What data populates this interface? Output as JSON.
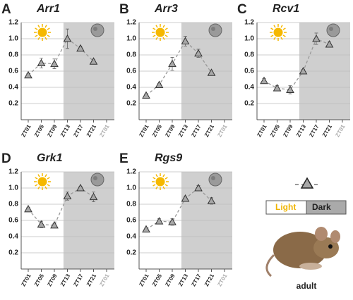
{
  "chart_data": [
    {
      "type": "line",
      "panel": "A",
      "title": "Arr1",
      "categories": [
        "ZT01",
        "ZT05",
        "ZT09",
        "ZT13",
        "ZT17",
        "ZT21",
        "ZT01"
      ],
      "values": [
        0.55,
        0.7,
        0.69,
        1.0,
        0.88,
        0.72,
        null
      ],
      "errors": [
        0.02,
        0.06,
        0.06,
        0.12,
        0.03,
        0.02,
        null
      ],
      "ylim": [
        0,
        1.2
      ],
      "yticks": [
        0.2,
        0.4,
        0.6,
        0.8,
        {
          "value": 1,
          "label": "1.0"
        },
        1.2
      ],
      "color": "#a8a8a8",
      "grid": true
    },
    {
      "type": "line",
      "panel": "B",
      "title": "Arr3",
      "categories": [
        "ZT01",
        "ZT05",
        "ZT09",
        "ZT13",
        "ZT17",
        "ZT21",
        "ZT01"
      ],
      "values": [
        0.3,
        0.43,
        0.69,
        0.97,
        0.82,
        0.58,
        null
      ],
      "errors": [
        0.02,
        0.02,
        0.08,
        0.06,
        0.05,
        0.02,
        null
      ],
      "ylim": [
        0,
        1.2
      ],
      "yticks": [
        0.2,
        0.4,
        0.6,
        0.8,
        {
          "value": 1,
          "label": "1.0"
        },
        1.2
      ],
      "color": "#a8a8a8",
      "grid": true
    },
    {
      "type": "line",
      "panel": "C",
      "title": "Rcv1",
      "categories": [
        "ZT01",
        "ZT05",
        "ZT09",
        "ZT13",
        "ZT17",
        "ZT21",
        "ZT01"
      ],
      "values": [
        0.48,
        0.39,
        0.37,
        0.6,
        1.0,
        0.93,
        null
      ],
      "errors": [
        0.03,
        0.03,
        0.05,
        0.02,
        0.07,
        0.03,
        null
      ],
      "ylim": [
        0,
        1.2
      ],
      "yticks": [
        0.2,
        0.4,
        0.6,
        0.8,
        {
          "value": 1,
          "label": "1.0"
        },
        1.2
      ],
      "color": "#a8a8a8",
      "grid": true
    },
    {
      "type": "line",
      "panel": "D",
      "title": "Grk1",
      "categories": [
        "ZT01",
        "ZT05",
        "ZT09",
        "ZT13",
        "ZT17",
        "ZT21",
        "ZT01"
      ],
      "values": [
        0.74,
        0.55,
        0.54,
        0.9,
        1.0,
        0.89,
        null
      ],
      "errors": [
        0.02,
        0.04,
        0.02,
        0.05,
        0.02,
        0.06,
        null
      ],
      "ylim": [
        0,
        1.2
      ],
      "yticks": [
        0.2,
        0.4,
        0.6,
        0.8,
        {
          "value": 1,
          "label": "1.0"
        },
        1.2
      ],
      "color": "#a8a8a8",
      "grid": true
    },
    {
      "type": "line",
      "panel": "E",
      "title": "Rgs9",
      "categories": [
        "ZT01",
        "ZT05",
        "ZT09",
        "ZT13",
        "ZT17",
        "ZT21",
        "ZT01"
      ],
      "values": [
        0.49,
        0.59,
        0.58,
        0.87,
        1.0,
        0.84,
        null
      ],
      "errors": [
        0.02,
        0.03,
        0.04,
        0.02,
        0.03,
        0.04,
        null
      ],
      "ylim": [
        0,
        1.2
      ],
      "yticks": [
        0.2,
        0.4,
        0.6,
        0.8,
        {
          "value": 1,
          "label": "1.0"
        },
        1.2
      ],
      "color": "#a8a8a8",
      "grid": true
    }
  ],
  "legend": {
    "light": "Light",
    "dark": "Dark",
    "caption": "adult"
  }
}
